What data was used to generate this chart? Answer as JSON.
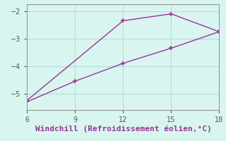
{
  "line1_x": [
    6,
    12,
    15,
    18
  ],
  "line1_y": [
    -5.25,
    -2.35,
    -2.1,
    -2.75
  ],
  "line2_x": [
    6,
    9,
    12,
    15,
    18
  ],
  "line2_y": [
    -5.3,
    -4.55,
    -3.9,
    -3.35,
    -2.75
  ],
  "line_color": "#993399",
  "marker": "+",
  "markersize": 5,
  "markeredgewidth": 1.2,
  "linewidth": 1.0,
  "linestyle": "-",
  "xlabel": "Windchill (Refroidissement éolien,°C)",
  "xlabel_color": "#993399",
  "xlabel_fontsize": 8,
  "bg_color": "#d8f5ef",
  "grid_color": "#b0ddd4",
  "tick_color": "#555555",
  "tick_fontsize": 7,
  "xlim": [
    6,
    18
  ],
  "ylim": [
    -5.6,
    -1.75
  ],
  "xticks": [
    6,
    9,
    12,
    15,
    18
  ],
  "yticks": [
    -5,
    -4,
    -3,
    -2
  ],
  "spine_color": "#999999"
}
